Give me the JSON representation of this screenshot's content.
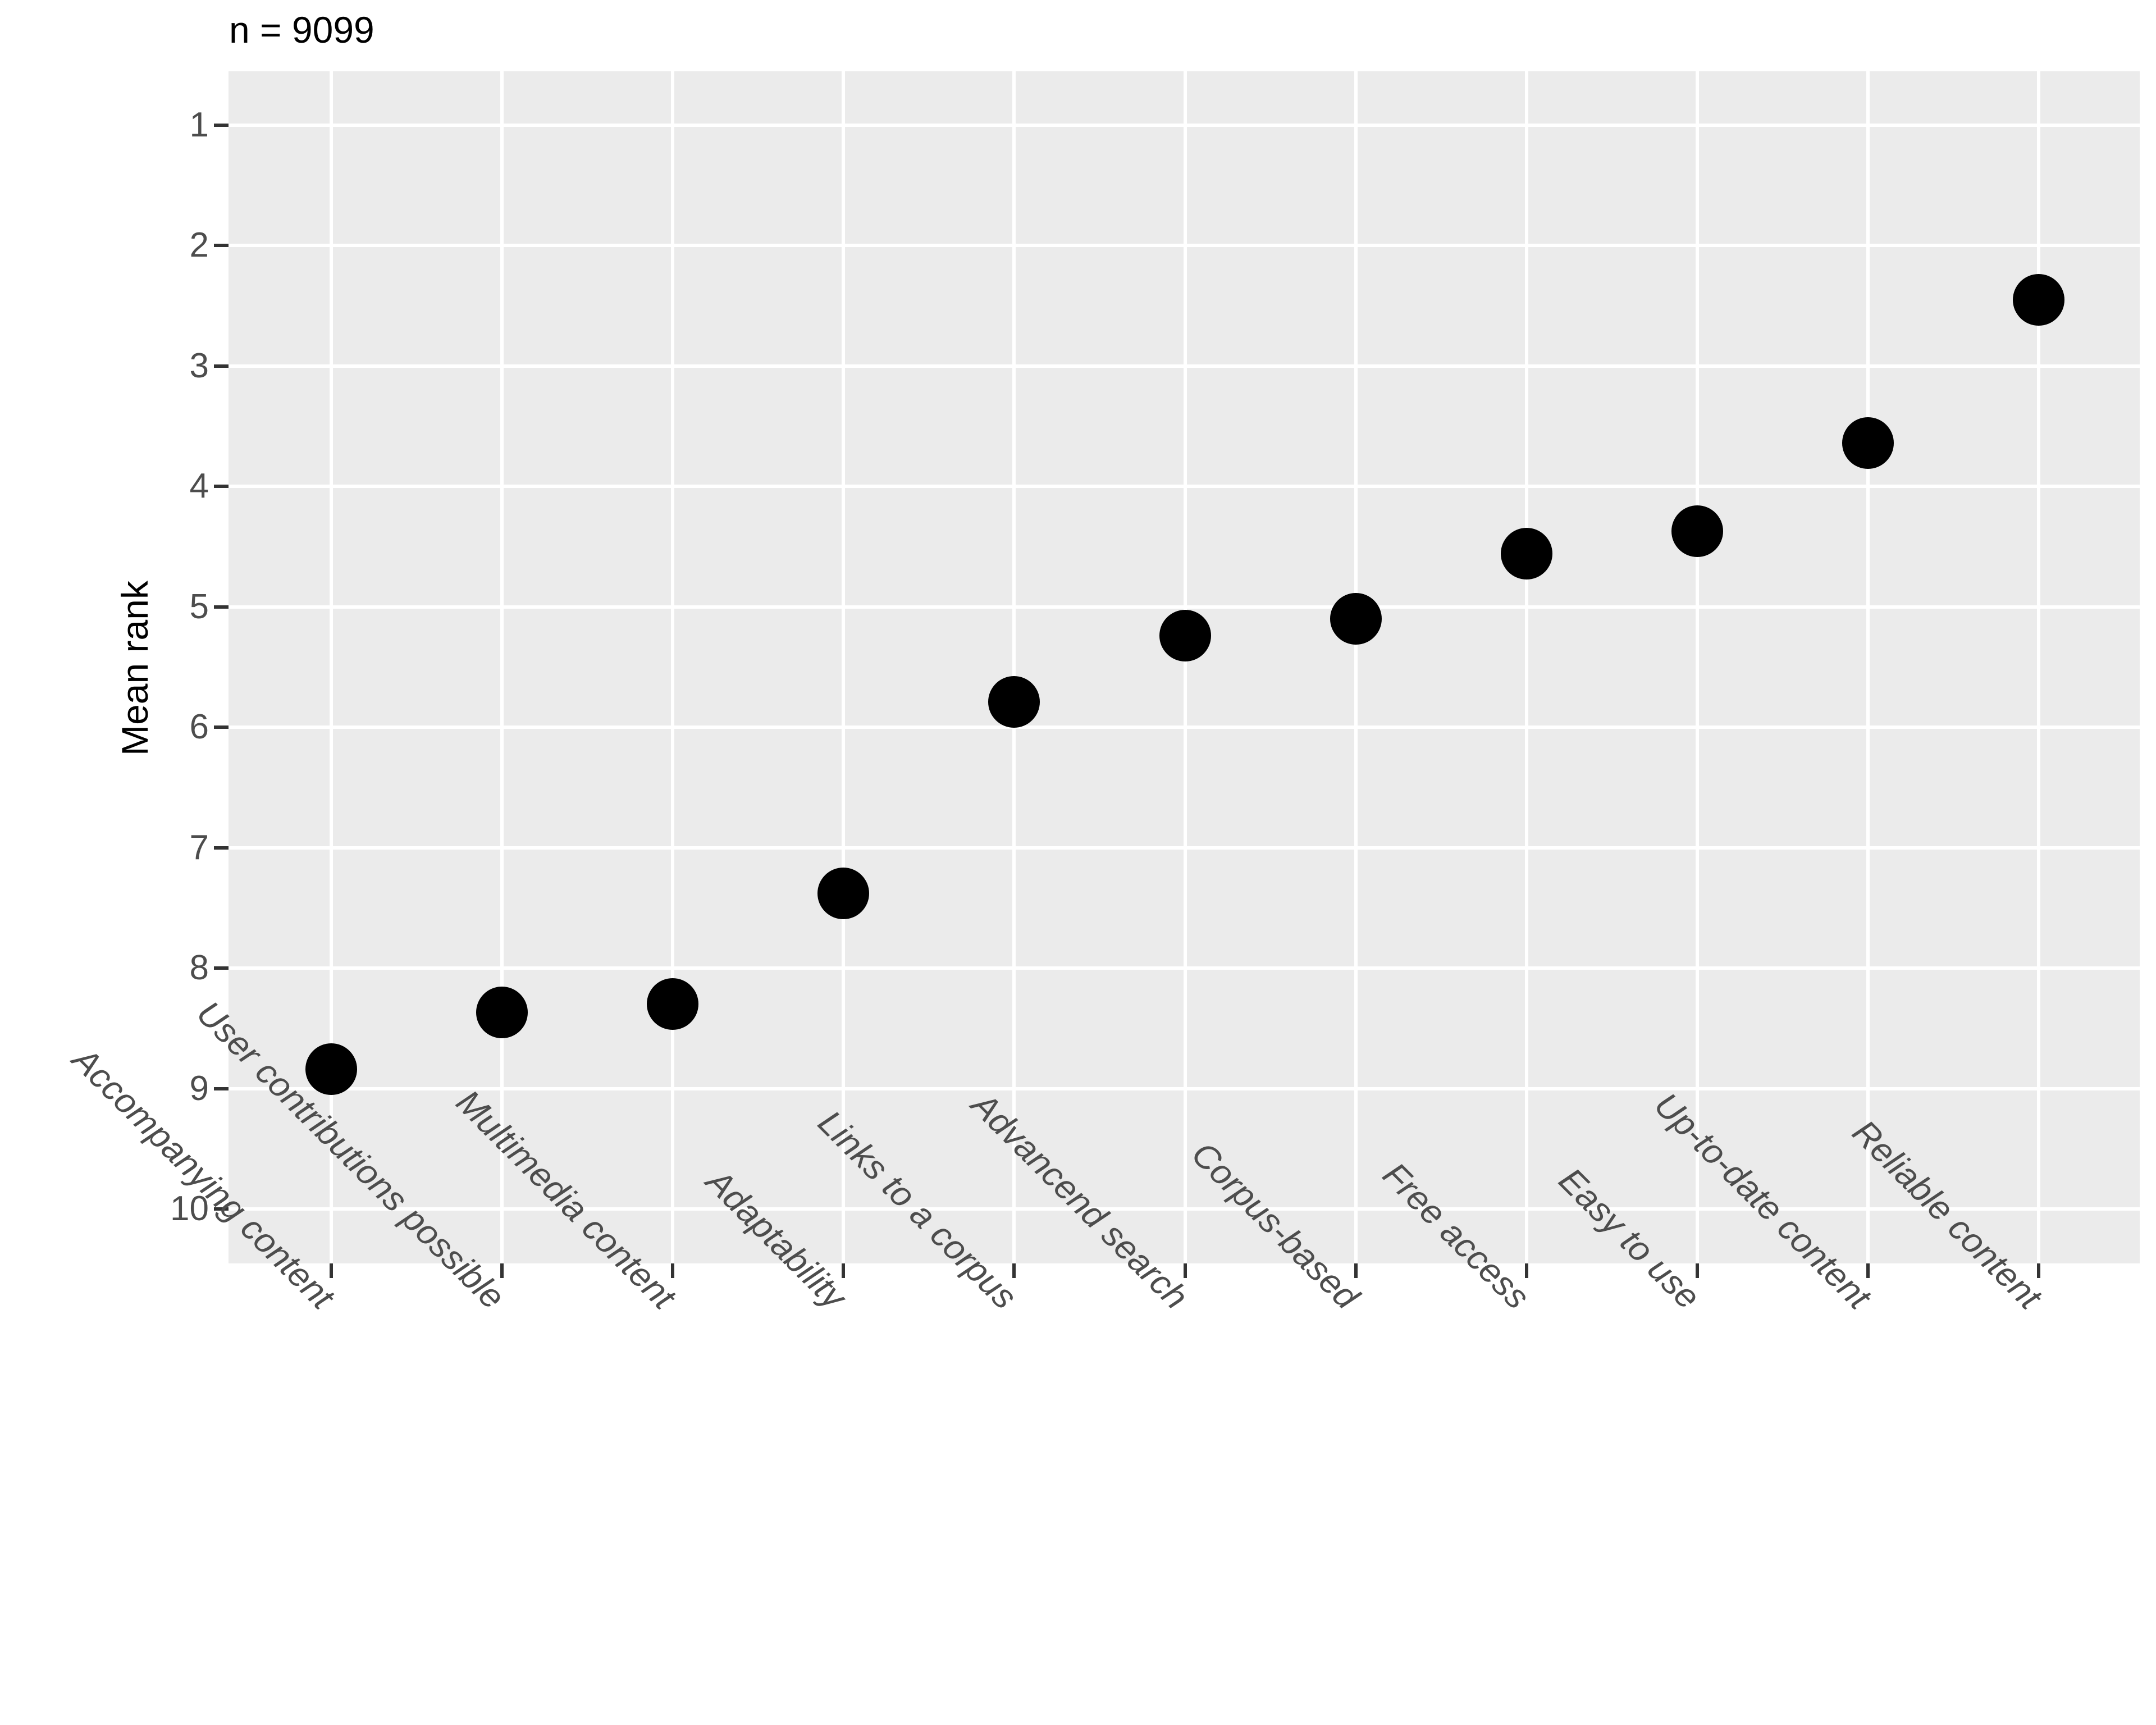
{
  "chart_data": {
    "type": "scatter",
    "title": "n = 9099",
    "xlabel": "",
    "ylabel": "Mean rank",
    "categories": [
      "Accompanying content",
      "User contributions possible",
      "Multimedia content",
      "Adaptability",
      "Links to a corpus",
      "Advancend search",
      "Corpus-based",
      "Free access",
      "Easy to use",
      "Up-to-date content",
      "Reliable content"
    ],
    "values": [
      8.84,
      8.37,
      8.3,
      7.38,
      5.79,
      5.24,
      5.1,
      4.56,
      4.37,
      3.64,
      2.45
    ],
    "y_ticks": [
      1,
      2,
      3,
      4,
      5,
      6,
      7,
      8,
      9,
      10
    ],
    "y_axis_inverted": true,
    "ylim": [
      0.55,
      10.45
    ],
    "grid": "white major gridlines (horizontal per rank, vertical per category), no minor gridlines",
    "legend_position": "none",
    "colors": {
      "panel_background": "#EBEBEB",
      "gridline": "#FFFFFF",
      "point": "#000000",
      "axis_text": "#4D4D4D",
      "tick_mark": "#333333",
      "title_text": "#000000",
      "page_background": "#FFFFFF"
    }
  }
}
